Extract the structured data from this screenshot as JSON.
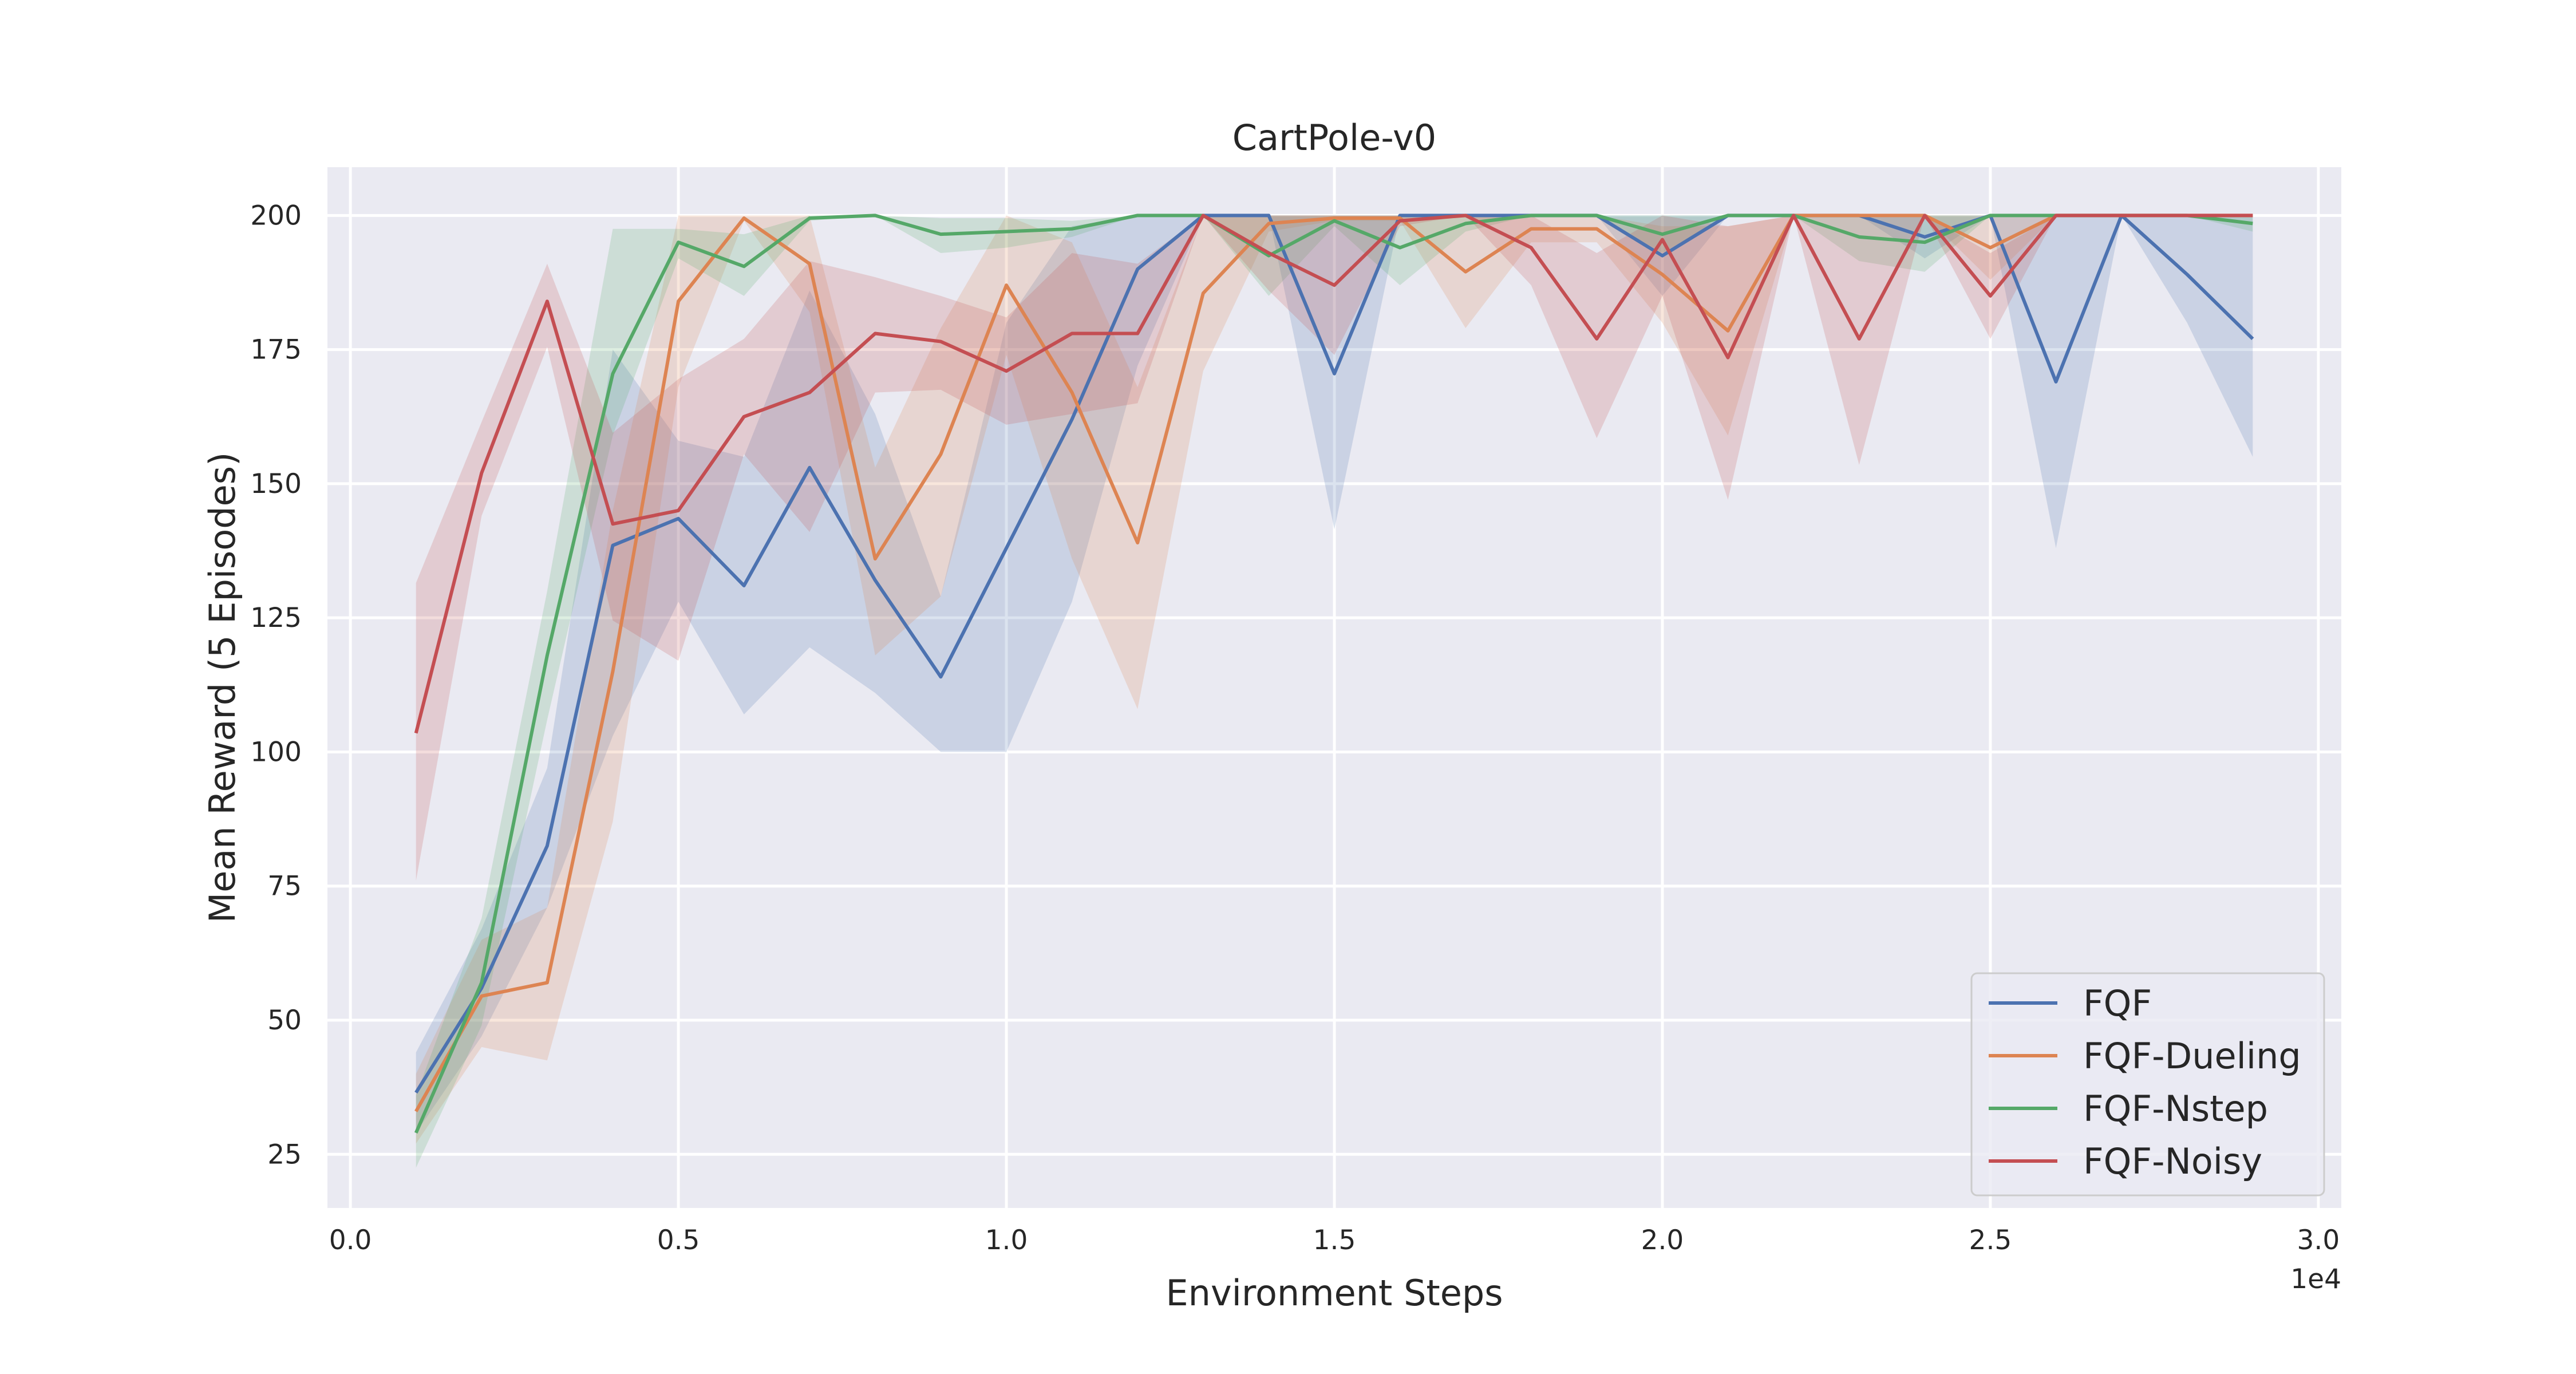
{
  "chart_data": {
    "type": "line",
    "title": "CartPole-v0",
    "xlabel": "Environment Steps",
    "ylabel": "Mean Reward (5 Episodes)",
    "x_offset_label": "1e4",
    "x_tick_labels": [
      "0.0",
      "0.5",
      "1.0",
      "1.5",
      "2.0",
      "2.5",
      "3.0"
    ],
    "x_tick_values": [
      0,
      5000,
      10000,
      15000,
      20000,
      25000,
      30000
    ],
    "y_tick_labels": [
      "25",
      "50",
      "75",
      "100",
      "125",
      "150",
      "175",
      "200"
    ],
    "y_tick_values": [
      25,
      50,
      75,
      100,
      125,
      150,
      175,
      200
    ],
    "xlim": [
      -350,
      30350
    ],
    "ylim": [
      15,
      209
    ],
    "grid": true,
    "background": "#eaeaf2",
    "legend_position": "bottom-right",
    "x": [
      1000,
      2000,
      3000,
      4000,
      5000,
      6000,
      7000,
      8000,
      9000,
      10000,
      11000,
      12000,
      13000,
      14000,
      15000,
      16000,
      17000,
      18000,
      19000,
      20000,
      21000,
      22000,
      23000,
      24000,
      25000,
      26000,
      27000,
      28000,
      29000
    ],
    "series": [
      {
        "name": "FQF",
        "color": "#4c72b0",
        "values": [
          36.5,
          56,
          82.5,
          138.5,
          143.5,
          131,
          153,
          132,
          114,
          138,
          162,
          190,
          200,
          200,
          170.5,
          200,
          200,
          200,
          200,
          192.5,
          200,
          200,
          200,
          196,
          200,
          169,
          200,
          189,
          177
        ],
        "lower": [
          29,
          47,
          71,
          103,
          128,
          107,
          119.5,
          111,
          100,
          100,
          128,
          172,
          200,
          200,
          141.5,
          200,
          200,
          200,
          200,
          185,
          200,
          200,
          200,
          192,
          200,
          138,
          200,
          180,
          155
        ],
        "upper": [
          44,
          67,
          97,
          175,
          158,
          155,
          186,
          163,
          129,
          180,
          198,
          200,
          200,
          200,
          200,
          200,
          200,
          200,
          200,
          200,
          200,
          200,
          200,
          200,
          200,
          200,
          200,
          200,
          200
        ]
      },
      {
        "name": "FQF-Dueling",
        "color": "#dd8452",
        "values": [
          33,
          54.5,
          57,
          115,
          184,
          199.5,
          191,
          136,
          155.5,
          187,
          167,
          139,
          185.5,
          198.5,
          199.5,
          199.5,
          189.5,
          197.5,
          197.5,
          189,
          178.5,
          200,
          200,
          200,
          194,
          200,
          200,
          200,
          200
        ],
        "lower": [
          27,
          45,
          42.5,
          87,
          168,
          199,
          182,
          118,
          129,
          174,
          136,
          108,
          171,
          197,
          199,
          199,
          179,
          195,
          195,
          180,
          159,
          200,
          200,
          200,
          188,
          200,
          200,
          200,
          200
        ],
        "upper": [
          40,
          65,
          71,
          145,
          200,
          200,
          200,
          153,
          179,
          200,
          195,
          168,
          200,
          200,
          200,
          200,
          200,
          200,
          200,
          198,
          198,
          200,
          200,
          200,
          200,
          200,
          200,
          200,
          200
        ]
      },
      {
        "name": "FQF-Nstep",
        "color": "#55a868",
        "values": [
          29,
          57,
          118,
          170.5,
          195,
          190.5,
          199.5,
          200,
          196.5,
          197,
          197.5,
          200,
          200,
          192.5,
          199,
          194,
          198.5,
          200,
          200,
          196.5,
          200,
          200,
          196,
          195,
          200,
          200,
          200,
          200,
          198.5
        ],
        "lower": [
          22.5,
          49,
          106,
          159,
          192,
          185,
          199,
          200,
          193,
          194,
          196,
          200,
          200,
          185,
          198,
          187,
          197,
          200,
          200,
          193,
          200,
          200,
          191.5,
          189.5,
          200,
          200,
          200,
          200,
          197
        ],
        "upper": [
          36,
          69,
          130,
          197.5,
          197.5,
          196.5,
          200,
          200,
          199.5,
          199.5,
          199,
          200,
          200,
          200,
          200,
          200,
          200,
          200,
          200,
          200,
          200,
          200,
          200,
          200,
          200,
          200,
          200,
          200,
          200
        ]
      },
      {
        "name": "FQF-Noisy",
        "color": "#c44e52",
        "values": [
          103.5,
          152,
          184,
          142.5,
          145,
          162.5,
          167,
          178,
          176.5,
          171,
          178,
          178,
          200,
          193,
          187,
          199,
          200,
          194,
          177,
          195.5,
          173.5,
          200,
          177,
          200,
          185,
          200,
          200,
          200,
          200
        ],
        "lower": [
          76,
          144,
          175.5,
          124.5,
          117,
          155.5,
          141,
          167,
          167.5,
          161,
          163,
          165,
          200,
          186,
          174,
          198,
          200,
          187,
          158.5,
          185,
          147,
          200,
          153.5,
          200,
          177,
          200,
          200,
          200,
          200
        ],
        "upper": [
          131.5,
          161.5,
          191,
          159.5,
          169.5,
          177,
          191.5,
          188.5,
          185,
          181,
          193,
          191,
          200,
          200,
          200,
          200,
          200,
          200,
          193,
          200,
          198,
          200,
          200,
          200,
          193,
          200,
          200,
          200,
          200
        ]
      }
    ]
  }
}
